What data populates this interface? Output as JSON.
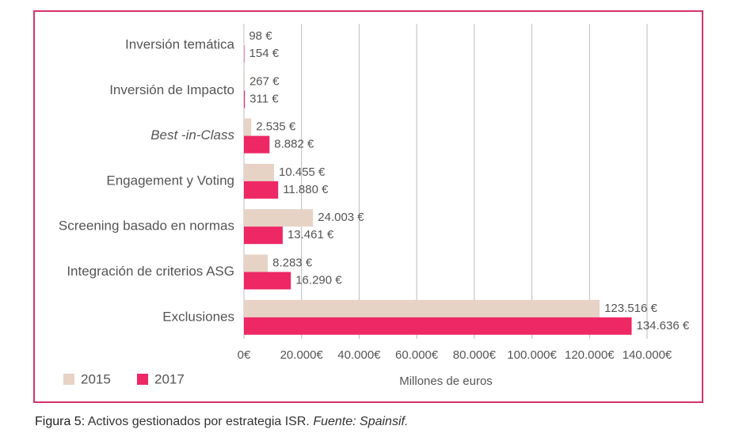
{
  "chart_data": {
    "type": "hbar",
    "categories": [
      "Inversión temática",
      "Inversión de Impacto",
      "Best -in-Class",
      "Engagement y Voting",
      "Screening basado en normas",
      "Integración de criterios ASG",
      "Exclusiones"
    ],
    "series": [
      {
        "name": "2015",
        "color": "#e6d3c6",
        "values": [
          98,
          267,
          2535,
          10455,
          24003,
          8283,
          123516
        ],
        "value_labels": [
          "98 €",
          "267 €",
          "2.535 €",
          "10.455 €",
          "24.003 €",
          "8.283 €",
          "123.516 €"
        ]
      },
      {
        "name": "2017",
        "color": "#ee2765",
        "values": [
          154,
          311,
          8882,
          11880,
          13461,
          16290,
          134636
        ],
        "value_labels": [
          "154 €",
          "311 €",
          "8.882 €",
          "11.880 €",
          "13.461 €",
          "16.290 €",
          "134.636 €"
        ]
      }
    ],
    "xlabel": "Millones de euros",
    "xlim": [
      0,
      140000
    ],
    "xticks": [
      {
        "value": 0,
        "label": "0€"
      },
      {
        "value": 20000,
        "label": "20.000€"
      },
      {
        "value": 40000,
        "label": "40.000€"
      },
      {
        "value": 60000,
        "label": "60.000€"
      },
      {
        "value": 80000,
        "label": "80.000€"
      },
      {
        "value": 100000,
        "label": "100.000€"
      },
      {
        "value": 120000,
        "label": "120.000€"
      },
      {
        "value": 140000,
        "label": "140.000€"
      }
    ],
    "grid": true,
    "legend": "bottom-left",
    "border_color": "#d6336c"
  },
  "caption": {
    "label": "Figura 5:",
    "text": "Activos gestionados por estrategia ISR.",
    "source": "Fuente: Spainsif."
  }
}
